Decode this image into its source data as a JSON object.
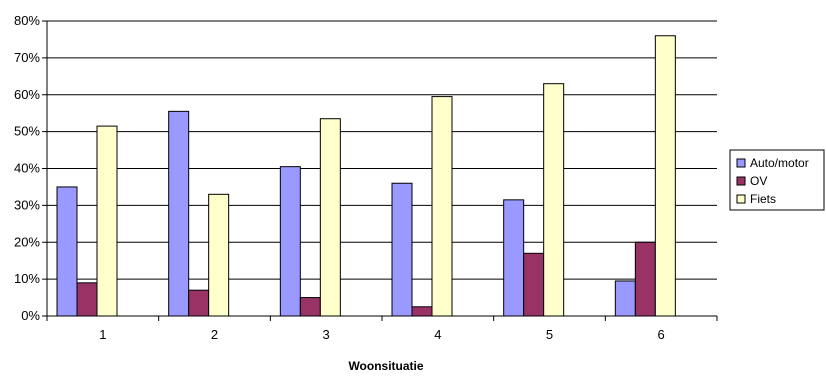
{
  "chart_data": {
    "type": "bar",
    "categories": [
      "1",
      "2",
      "3",
      "4",
      "5",
      "6"
    ],
    "series": [
      {
        "name": "Auto/motor",
        "values": [
          35,
          55.5,
          40.5,
          36,
          31.5,
          9.5
        ],
        "color": "#9999ff"
      },
      {
        "name": "OV",
        "values": [
          9,
          7,
          5,
          2.5,
          17,
          20
        ],
        "color": "#993366"
      },
      {
        "name": "Fiets",
        "values": [
          51.5,
          33,
          53.5,
          59.5,
          63,
          76
        ],
        "color": "#ffffcc"
      }
    ],
    "title": "",
    "xlabel": "Woonsituatie",
    "ylabel": "",
    "ylim": [
      0,
      80
    ],
    "yticks": [
      0,
      10,
      20,
      30,
      40,
      50,
      60,
      70,
      80
    ],
    "ytick_format": "%",
    "grid": true,
    "legend_position": "right"
  }
}
